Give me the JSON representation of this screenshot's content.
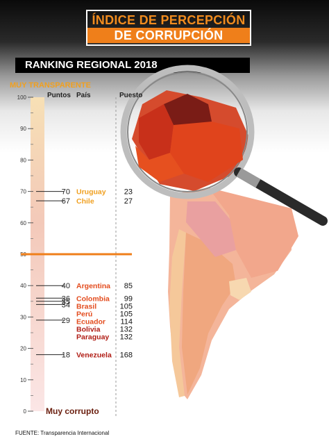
{
  "header": {
    "title_line1": "ÍNDICE DE PERCEPCIÓN",
    "title_line2": "DE CORRUPCIÓN",
    "subtitle": "RANKING REGIONAL 2018"
  },
  "scale": {
    "top_label": "MUY TRANSPARENTE",
    "bottom_label": "Muy corrupto"
  },
  "columns": {
    "points": "Puntos",
    "country": "País",
    "rank": "Puesto"
  },
  "source": "FUENTE: Transparencia Internacional",
  "colors": {
    "high": "#f0a020",
    "mid": "#e34c1e",
    "low": "#b01c14",
    "midline": "#ef7f1a"
  },
  "chart_data": {
    "type": "bar",
    "ylim": [
      0,
      100
    ],
    "yticks": [
      0,
      10,
      20,
      30,
      40,
      50,
      60,
      70,
      80,
      90,
      100
    ],
    "reference_line": 50,
    "entries": [
      {
        "country": "Uruguay",
        "points": 70,
        "rank": 23,
        "color": "#f0a020"
      },
      {
        "country": "Chile",
        "points": 67,
        "rank": 27,
        "color": "#f0a020"
      },
      {
        "country": "Argentina",
        "points": 40,
        "rank": 85,
        "color": "#e34c1e"
      },
      {
        "country": "Colombia",
        "points": 36,
        "rank": 99,
        "color": "#e34c1e"
      },
      {
        "country": "Brasil",
        "points": 35,
        "rank": 105,
        "color": "#e34c1e"
      },
      {
        "country": "Perú",
        "points": 35,
        "rank": 105,
        "color": "#e34c1e"
      },
      {
        "country": "Ecuador",
        "points": 34,
        "rank": 114,
        "color": "#e34c1e"
      },
      {
        "country": "Bolivia",
        "points": 29,
        "rank": 132,
        "color": "#b01c14"
      },
      {
        "country": "Paraguay",
        "points": 29,
        "rank": 132,
        "color": "#b01c14"
      },
      {
        "country": "Venezuela",
        "points": 18,
        "rank": 168,
        "color": "#b01c14"
      }
    ]
  }
}
